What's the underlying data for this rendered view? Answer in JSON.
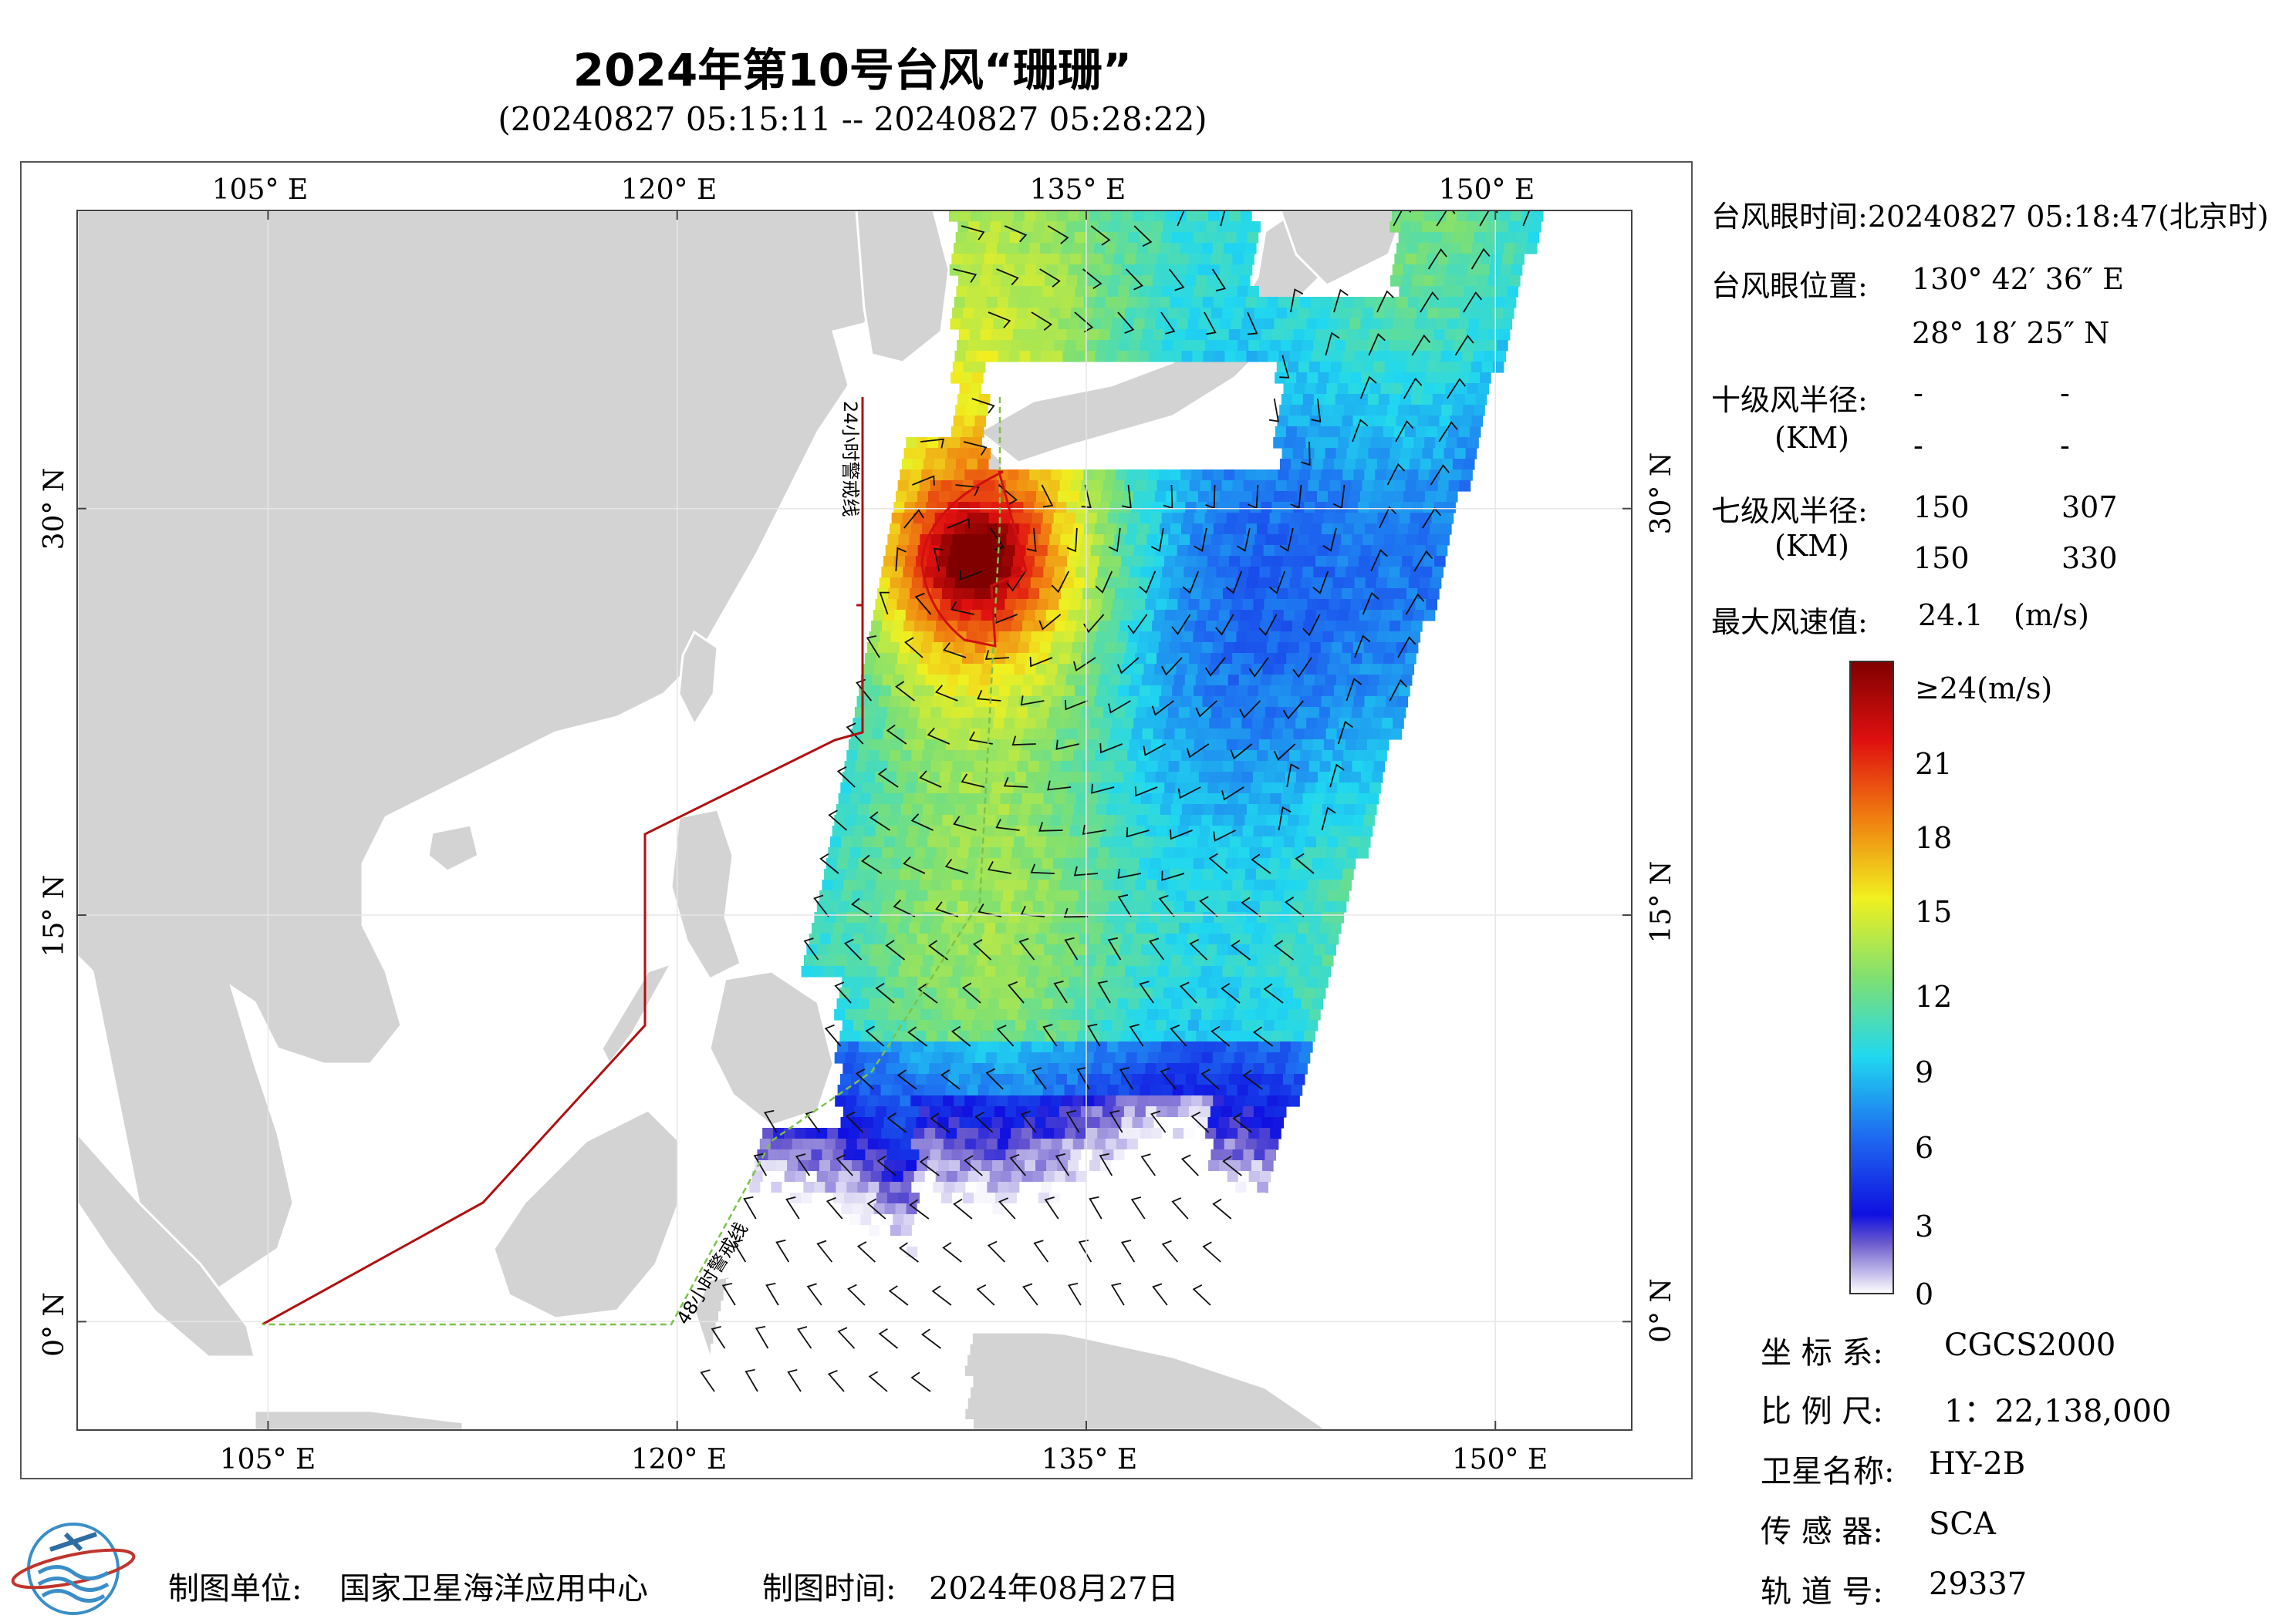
{
  "header": {
    "title": "2024年第10号台风“珊珊”",
    "subtitle": "(20240827 05:15:11 -- 20240827 05:28:22)"
  },
  "map": {
    "lon_top_labels": [
      "105° E",
      "120° E",
      "135° E",
      "150° E"
    ],
    "lon_bottom_labels": [
      "105° E",
      "120° E",
      "135° E",
      "150° E"
    ],
    "lat_labels": [
      "30° N",
      "15° N",
      "0° N"
    ],
    "lon_ticks_deg": [
      105,
      120,
      135,
      150
    ],
    "lat_ticks_deg": [
      30,
      15,
      0
    ],
    "extent": {
      "lon": [
        98,
        155
      ],
      "lat": [
        -4,
        41
      ]
    },
    "warning_line_24h_label": "24小时警戒线",
    "warning_line_48h_label": "48小时警戒线",
    "typhoon_eye": {
      "lon": 130.71,
      "lat": 28.31
    },
    "colors": {
      "land": "#d3d3d3",
      "ocean": "#ffffff",
      "warning24": "#b01010",
      "warning48": "#7cc24a",
      "wind_circle": "#d01010"
    }
  },
  "info": {
    "eye_time_label": "台风眼时间:",
    "eye_time_value": "20240827 05:18:47(北京时)",
    "eye_pos_label": "台风眼位置:",
    "eye_lon": "130° 42′ 36″ E",
    "eye_lat": "28° 18′ 25″ N",
    "r10_label": "十级风半径:",
    "r10_unit": "(KM)",
    "r10_values": [
      "-",
      "-",
      "-",
      "-"
    ],
    "r7_label": "七级风半径:",
    "r7_unit": "(KM)",
    "r7_values": [
      "150",
      "307",
      "150",
      "330"
    ],
    "max_wind_label": "最大风速值:",
    "max_wind_value": "24.1",
    "max_wind_unit": "(m/s)"
  },
  "colorbar": {
    "labels": [
      "≥24(m/s)",
      "21",
      "18",
      "15",
      "12",
      "9",
      "6",
      "3",
      "0"
    ],
    "stops": [
      {
        "value": 0,
        "color": "#ffffff"
      },
      {
        "value": 2,
        "color": "#6a5acd"
      },
      {
        "value": 3,
        "color": "#1010e0"
      },
      {
        "value": 6,
        "color": "#1e6cf0"
      },
      {
        "value": 9,
        "color": "#20d8f0"
      },
      {
        "value": 12,
        "color": "#80e070"
      },
      {
        "value": 15,
        "color": "#f0f020"
      },
      {
        "value": 18,
        "color": "#f08010"
      },
      {
        "value": 21,
        "color": "#e01010"
      },
      {
        "value": 24,
        "color": "#800000"
      }
    ]
  },
  "meta": {
    "coord_label": "坐 标 系:",
    "coord_value": "CGCS2000",
    "scale_label": "比 例 尺:",
    "scale_value": "1：22,138,000",
    "sat_label": "卫星名称:",
    "sat_value": "HY-2B",
    "sensor_label": "传 感 器:",
    "sensor_value": "SCA",
    "orbit_label": "轨 道 号:",
    "orbit_value": "29337"
  },
  "footer": {
    "unit_label": "制图单位:",
    "unit_value": "国家卫星海洋应用中心",
    "time_label": "制图时间:",
    "time_value": "2024年08月27日"
  }
}
